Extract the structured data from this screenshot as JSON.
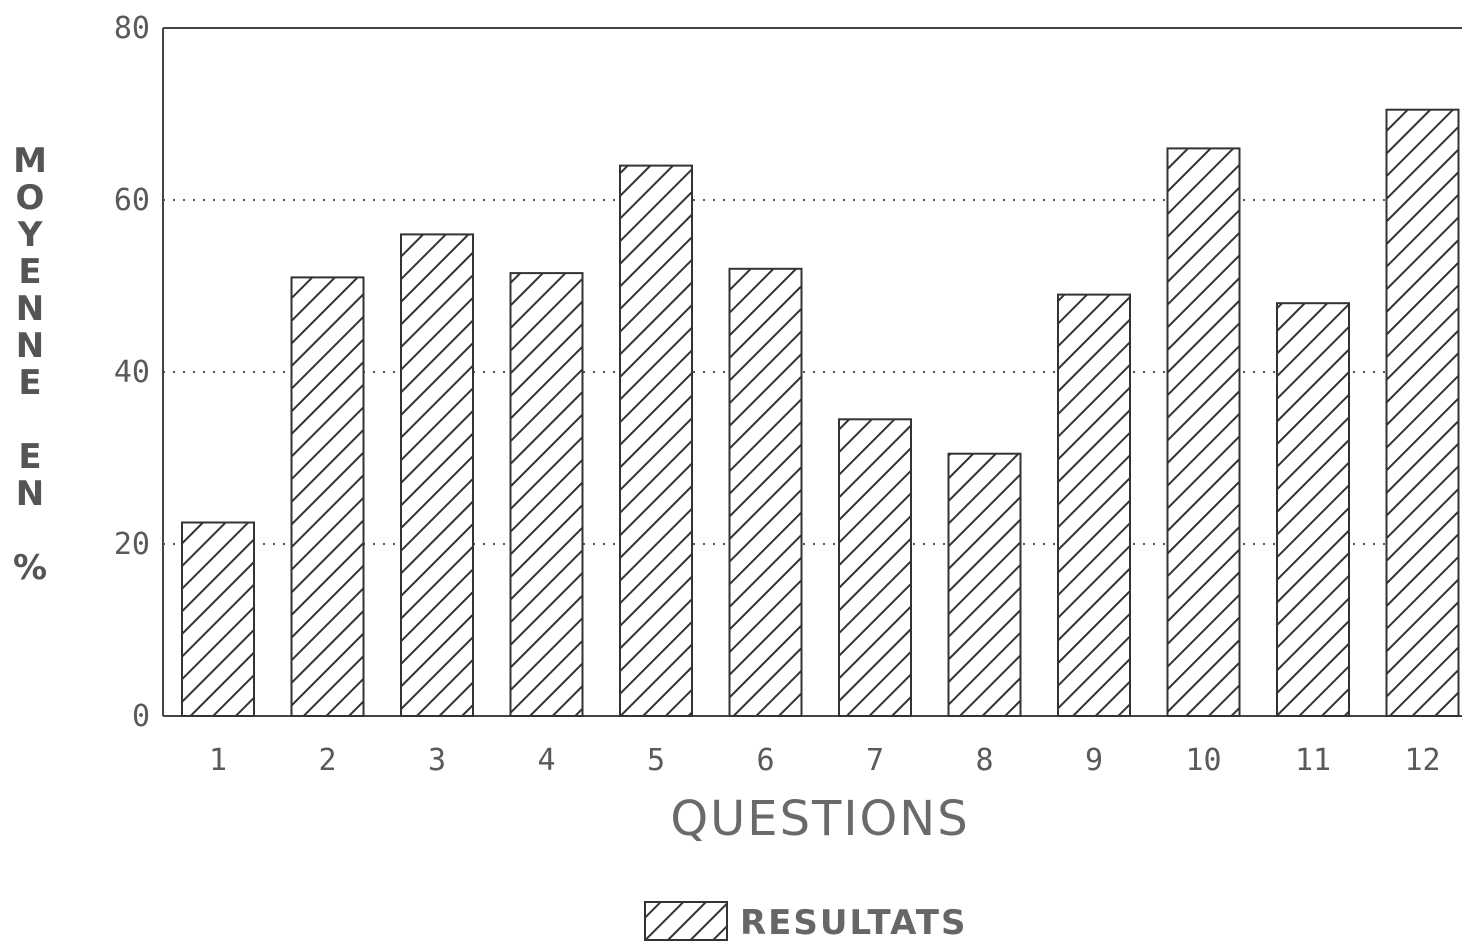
{
  "chart_data": {
    "type": "bar",
    "title": "",
    "xlabel": "QUESTIONS",
    "ylabel": "MOYENNE EN %",
    "categories": [
      "1",
      "2",
      "3",
      "4",
      "5",
      "6",
      "7",
      "8",
      "9",
      "10",
      "11",
      "12"
    ],
    "series": [
      {
        "name": "RESULTATS",
        "values": [
          22.5,
          51,
          56,
          51.5,
          64,
          52,
          34.5,
          30.5,
          49,
          66,
          48,
          70.5
        ]
      }
    ],
    "ylim": [
      0,
      80
    ],
    "yticks": [
      "0",
      "20",
      "40",
      "60",
      "80"
    ],
    "grid": "horizontal-dotted",
    "legend_position": "bottom-center",
    "colors": {
      "bar_fill": "#ffffff",
      "bar_hatch": "#333333",
      "axis": "#444444",
      "grid": "#555555"
    }
  }
}
